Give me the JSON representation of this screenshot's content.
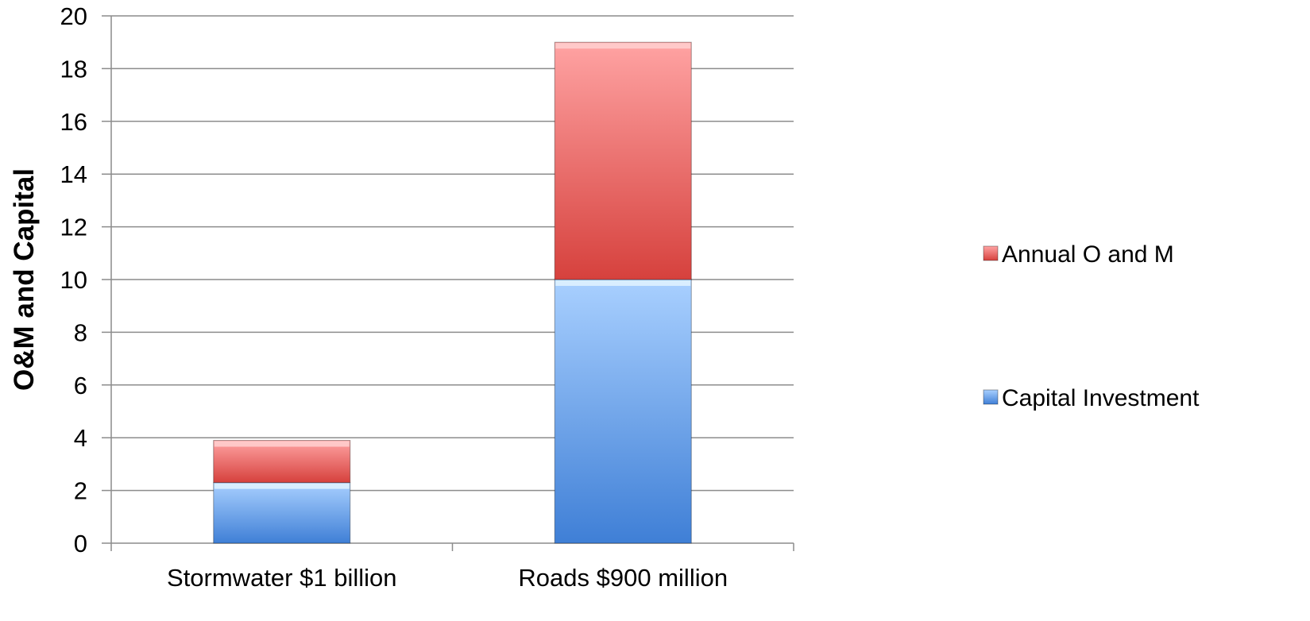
{
  "chart_data": {
    "type": "bar",
    "stacked": true,
    "title": "",
    "xlabel": "",
    "ylabel": "O&M and Capital",
    "ylim": [
      0,
      20
    ],
    "yticks": [
      0,
      2,
      4,
      6,
      8,
      10,
      12,
      14,
      16,
      18,
      20
    ],
    "grid": true,
    "legend_position": "right",
    "categories": [
      "Stormwater $1 billion",
      "Roads $900 million"
    ],
    "series": [
      {
        "name": "Capital Investment",
        "values": [
          2.3,
          10.0
        ],
        "color_top": "#a9d0ff",
        "color_bottom": "#3f7fd6",
        "highlight": "#e2f3ff"
      },
      {
        "name": "Annual O and M",
        "values": [
          1.6,
          9.0
        ],
        "color_top": "#ffa3a3",
        "color_bottom": "#d6413d",
        "highlight": "#ffd0d0"
      }
    ]
  }
}
